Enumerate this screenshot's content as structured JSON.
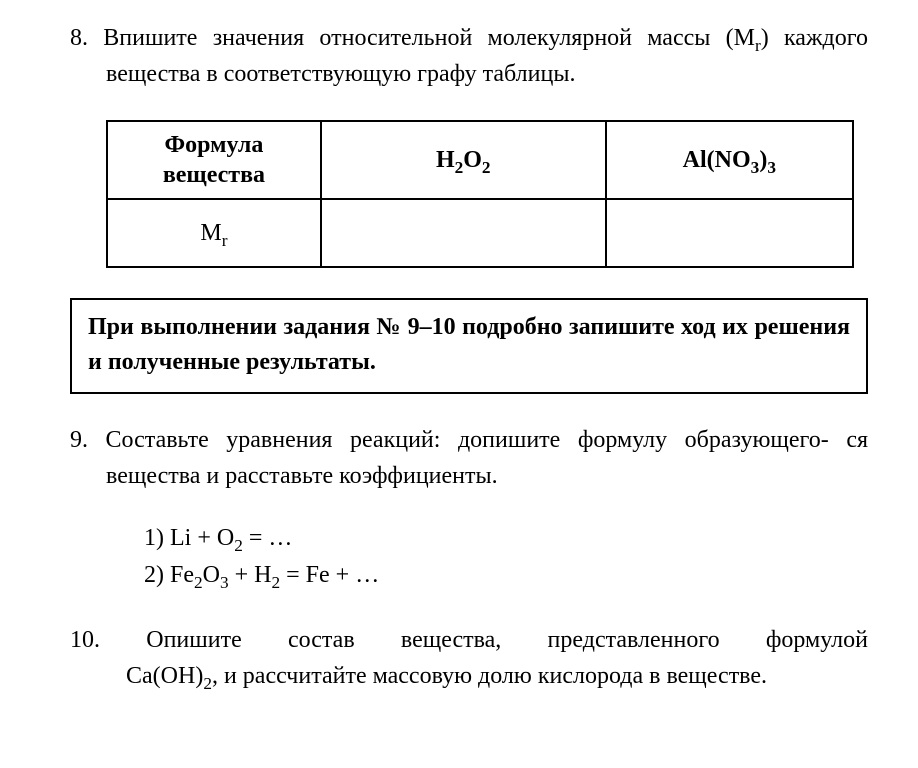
{
  "q8": {
    "number": "8.",
    "text_l1": "Впишите значения относительной молекулярной массы (M",
    "text_sub": "r",
    "text_l1b": ")",
    "text_l2": "каждого вещества в соответствующую графу таблицы.",
    "table": {
      "header_col1_l1": "Формула",
      "header_col1_l2": "вещества",
      "header_col2_a": "H",
      "header_col2_s1": "2",
      "header_col2_b": "O",
      "header_col2_s2": "2",
      "header_col3_a": "Al(NO",
      "header_col3_s1": "3",
      "header_col3_b": ")",
      "header_col3_s2": "3",
      "row2_col1_a": "M",
      "row2_col1_sub": "r",
      "row2_col2": "",
      "row2_col3": ""
    }
  },
  "instruction": {
    "l1a": "При выполнении задания № 9–10 подробно запишите ход их",
    "l2": "решения и полученные результаты."
  },
  "q9": {
    "number": "9.",
    "text_l1": "Составьте уравнения реакций: допишите формулу образующего-",
    "text_l2": "ся вещества и расставьте коэффициенты.",
    "eq1_a": "1) Li + O",
    "eq1_s1": "2",
    "eq1_b": " = …",
    "eq2_a": "2) Fe",
    "eq2_s1": "2",
    "eq2_b": "O",
    "eq2_s2": "3",
    "eq2_c": " + H",
    "eq2_s3": "2",
    "eq2_d": " = Fe + …"
  },
  "q10": {
    "number": "10.",
    "w1": "Опишите",
    "w2": "состав",
    "w3": "вещества,",
    "w4": "представленного",
    "w5": "формулой",
    "l2a": "Ca(OH)",
    "l2s": "2",
    "l2b": ", и рассчитайте массовую долю кислорода в веществе."
  }
}
